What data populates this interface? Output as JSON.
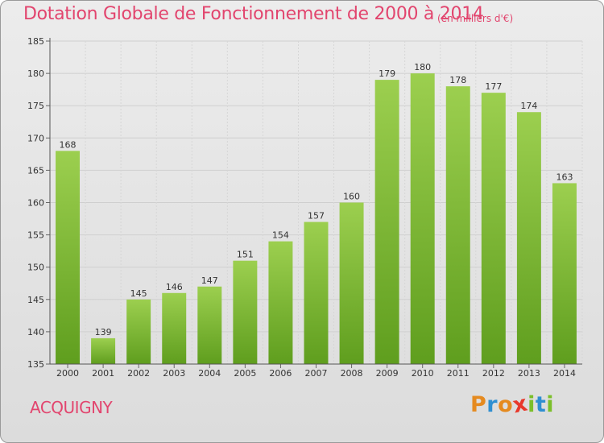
{
  "header": {
    "title": "Dotation Globale de Fonctionnement de 2000 à 2014",
    "subtitle": "(en milliers d'€)"
  },
  "footer": {
    "commune": "ACQUIGNY",
    "logo_text": "Proxiti",
    "logo_colors": [
      "#e58a1f",
      "#2f8fd1",
      "#e58a1f",
      "#e8392c",
      "#7bbf2a",
      "#2f8fd1",
      "#7bbf2a"
    ]
  },
  "chart_data": {
    "type": "bar",
    "title": "Dotation Globale de Fonctionnement de 2000 à 2014",
    "subtitle": "(en milliers d'€)",
    "categories": [
      "2000",
      "2001",
      "2002",
      "2003",
      "2004",
      "2005",
      "2006",
      "2007",
      "2008",
      "2009",
      "2010",
      "2011",
      "2012",
      "2013",
      "2014"
    ],
    "values": [
      168,
      139,
      145,
      146,
      147,
      151,
      154,
      157,
      160,
      179,
      180,
      178,
      177,
      174,
      163
    ],
    "data_labels": [
      "168",
      "139",
      "145",
      "146",
      "147",
      "151",
      "154",
      "157",
      "160",
      "179",
      "180",
      "178",
      "177",
      "174",
      "163"
    ],
    "ylim": [
      135,
      185
    ],
    "yticks": [
      "135",
      "140",
      "145",
      "150",
      "155",
      "160",
      "165",
      "170",
      "175",
      "180",
      "185"
    ],
    "xlabel": "",
    "ylabel": "",
    "grid": true,
    "bar_color_top": "#9ccf4f",
    "bar_color_bottom": "#5f9e1e"
  }
}
